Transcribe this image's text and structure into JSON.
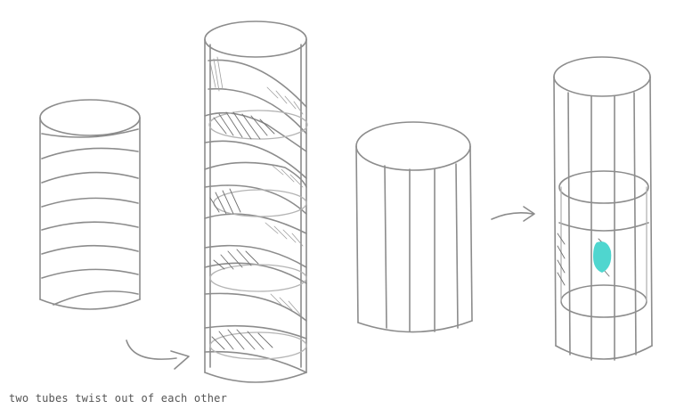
{
  "caption": "two tubes twist out of each other",
  "colors": {
    "stroke": "#8c8c8c",
    "highlight": "#4fd6cf",
    "background": "#ffffff"
  },
  "elements": {
    "striped_tube": "cylinder with diagonal stripes",
    "twisted_tube": "two tubes twisting around each other",
    "vertical_tube": "cylinder with vertical stripes",
    "caged_tube": "outer cage with inner tube",
    "arrows": [
      "arrow-left-to-twist",
      "arrow-to-cage"
    ]
  }
}
